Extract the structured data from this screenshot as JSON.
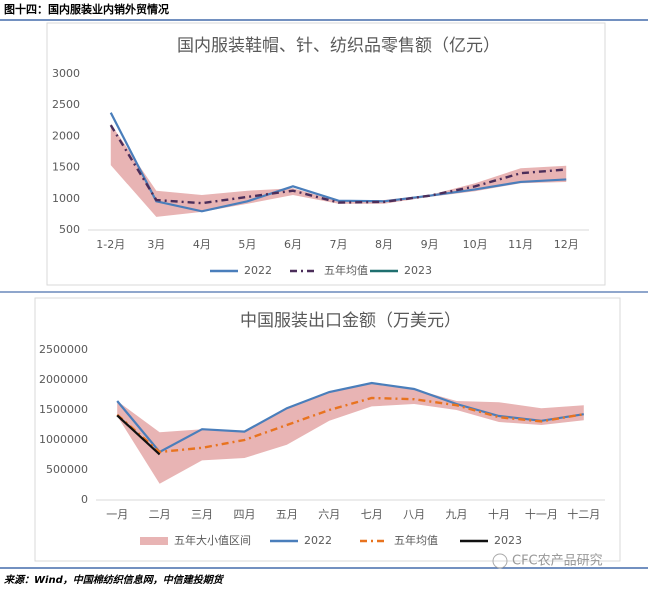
{
  "header": {
    "title": "图十四：国内服装业内销外贸情况"
  },
  "source": "来源：Wind，中国棉纺织信息网，中信建投期货",
  "watermark": "CFC农产品研究",
  "chart_data": [
    {
      "type": "line",
      "title": "国内服装鞋帽、针、纺织品零售额（亿元）",
      "categories": [
        "1-2月",
        "3月",
        "4月",
        "5月",
        "6月",
        "7月",
        "8月",
        "9月",
        "10月",
        "11月",
        "12月"
      ],
      "band": {
        "color": "#e8b4b4",
        "high": [
          2200,
          1130,
          1060,
          1130,
          1170,
          960,
          980,
          1060,
          1250,
          1490,
          1530
        ],
        "low": [
          1540,
          710,
          790,
          920,
          1060,
          920,
          920,
          1030,
          1120,
          1250,
          1270
        ]
      },
      "series": [
        {
          "name": "2022",
          "color": "#4a7ebb",
          "style": "solid",
          "values": [
            2380,
            960,
            800,
            960,
            1200,
            970,
            960,
            1050,
            1150,
            1270,
            1310
          ]
        },
        {
          "name": "五年均值",
          "color": "#4b2e5a",
          "style": "dash-dot",
          "values": [
            2180,
            980,
            930,
            1030,
            1130,
            940,
            950,
            1050,
            1200,
            1410,
            1470
          ]
        },
        {
          "name": "2023",
          "color": "#1f6f6f",
          "style": "solid",
          "values": [
            null,
            null,
            null,
            null,
            null,
            null,
            null,
            null,
            null,
            null,
            null
          ]
        }
      ],
      "ylim": [
        500,
        3000
      ],
      "yticks": [
        500,
        1000,
        1500,
        2000,
        2500,
        3000
      ],
      "grid": false,
      "legend": "bottom"
    },
    {
      "type": "line",
      "title": "中国服装出口金额（万美元）",
      "categories": [
        "一月",
        "二月",
        "三月",
        "四月",
        "五月",
        "六月",
        "七月",
        "八月",
        "九月",
        "十月",
        "十一月",
        "十二月"
      ],
      "band": {
        "name": "五年大小值区间",
        "color": "#e8b4b4",
        "high": [
          1650000,
          1130000,
          1180000,
          1150000,
          1530000,
          1800000,
          1950000,
          1850000,
          1650000,
          1630000,
          1530000,
          1580000
        ],
        "low": [
          1400000,
          270000,
          660000,
          700000,
          920000,
          1320000,
          1560000,
          1600000,
          1500000,
          1300000,
          1250000,
          1330000
        ]
      },
      "series": [
        {
          "name": "2022",
          "color": "#4a7ebb",
          "style": "solid",
          "values": [
            1650000,
            800000,
            1180000,
            1140000,
            1530000,
            1800000,
            1950000,
            1850000,
            1600000,
            1400000,
            1320000,
            1430000
          ]
        },
        {
          "name": "五年均值",
          "color": "#e8731f",
          "style": "dash-dot",
          "values": [
            1420000,
            800000,
            870000,
            1000000,
            1250000,
            1500000,
            1700000,
            1680000,
            1580000,
            1380000,
            1310000,
            1430000
          ]
        },
        {
          "name": "2023",
          "color": "#111111",
          "style": "solid",
          "values": [
            1410000,
            760000,
            null,
            null,
            null,
            null,
            null,
            null,
            null,
            null,
            null,
            null
          ]
        }
      ],
      "ylim": [
        0,
        2500000
      ],
      "yticks": [
        0,
        500000,
        1000000,
        1500000,
        2000000,
        2500000
      ],
      "grid": false,
      "legend": "bottom"
    }
  ]
}
